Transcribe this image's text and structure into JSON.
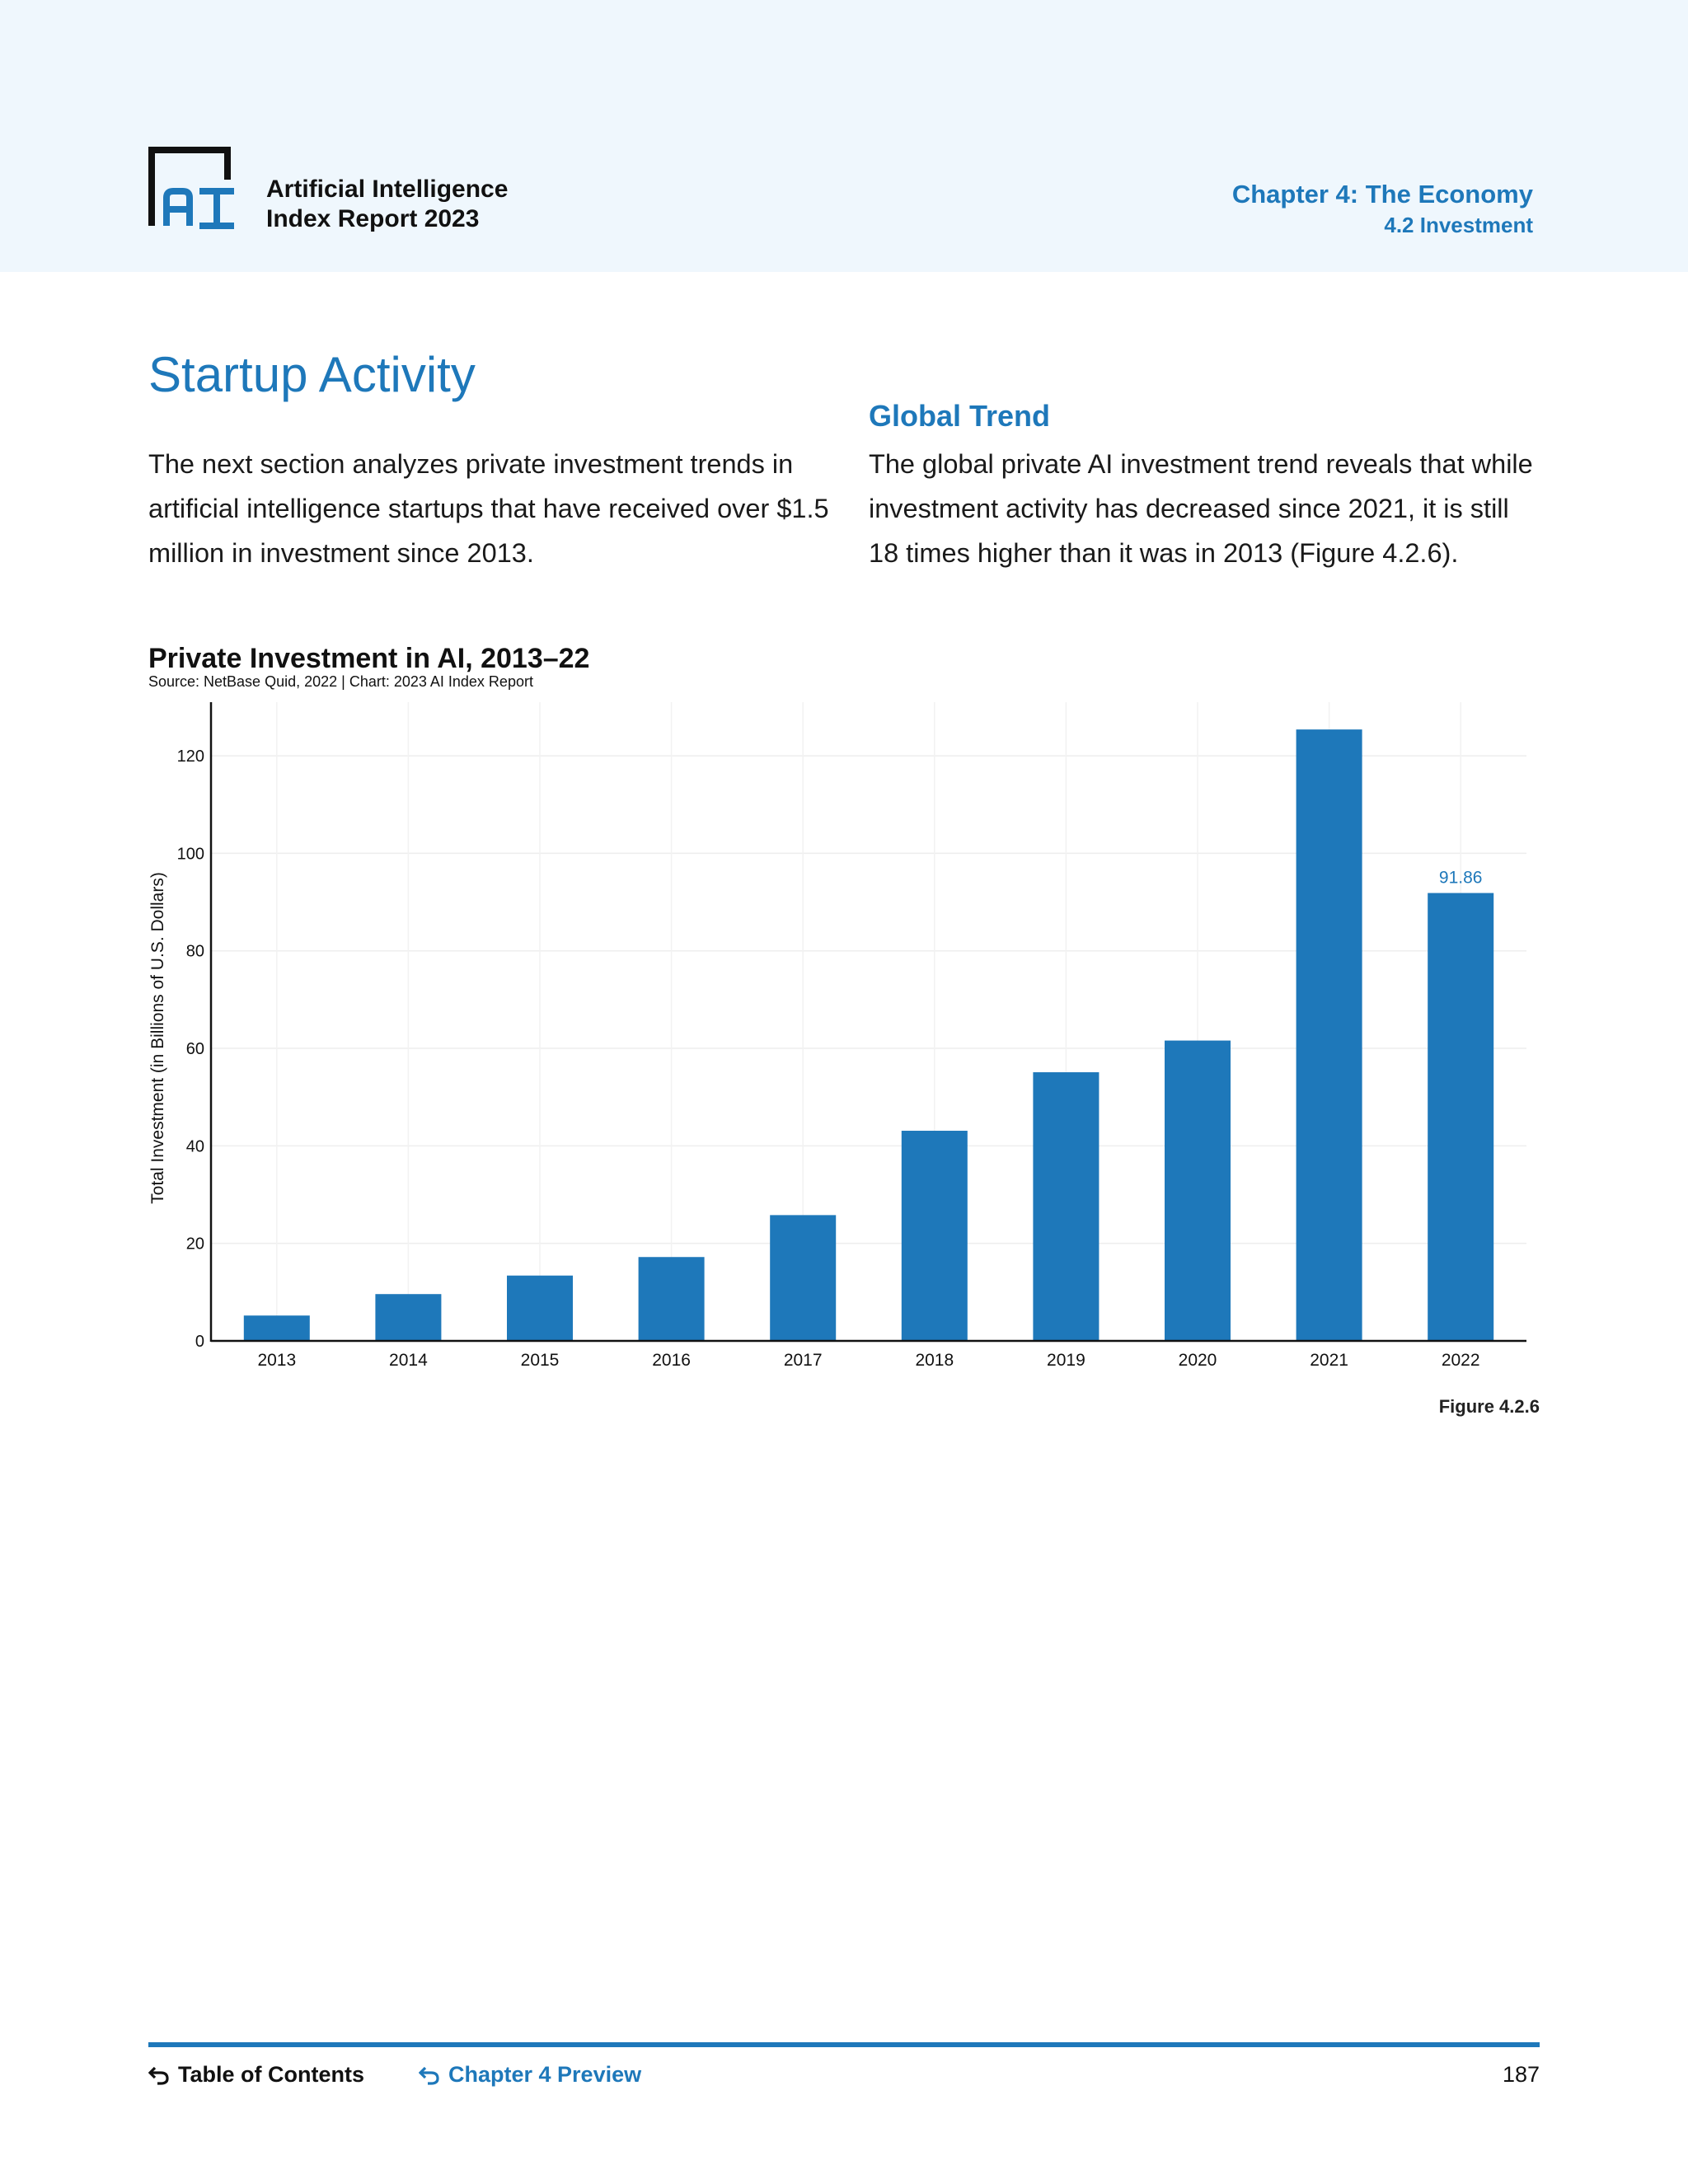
{
  "header": {
    "report_title_line1": "Artificial Intelligence",
    "report_title_line2": "Index Report 2023",
    "chapter_title": "Chapter 4: The Economy",
    "chapter_subtitle": "4.2 Investment",
    "logo_icon": "ai-index-logo-icon"
  },
  "main": {
    "page_heading": "Startup Activity",
    "left_paragraph": "The next section analyzes private investment trends in artificial intelligence startups that have received over $1.5 million in investment since 2013.",
    "section_heading": "Global Trend",
    "right_paragraph": "The global private AI investment trend reveals that while investment activity has decreased since 2021, it is still 18 times higher than it was in 2013 (Figure 4.2.6).",
    "figure_label": "Figure 4.2.6"
  },
  "chart_data": {
    "type": "bar",
    "title": "Private Investment in AI, 2013–22",
    "source": "Source: NetBase Quid, 2022 | Chart: 2023 AI Index Report",
    "xlabel": "",
    "ylabel": "Total Investment (in Billions of U.S. Dollars)",
    "categories": [
      "2013",
      "2014",
      "2015",
      "2016",
      "2017",
      "2018",
      "2019",
      "2020",
      "2021",
      "2022"
    ],
    "values": [
      5.2,
      9.6,
      13.4,
      17.2,
      25.8,
      43.1,
      55.1,
      61.6,
      125.4,
      91.86
    ],
    "data_labels": [
      {
        "index": 9,
        "text": "91.86"
      }
    ],
    "yticks": [
      0,
      20,
      40,
      60,
      80,
      100,
      120
    ],
    "ylim": [
      0,
      131
    ],
    "grid": true,
    "bar_color": "#1e78ba",
    "label_color": "#1e78ba"
  },
  "footer": {
    "toc_label": "Table of Contents",
    "chapter_preview_label": "Chapter 4 Preview",
    "page_number": "187",
    "back_icon": "back-arrow-icon"
  },
  "colors": {
    "accent": "#1e78ba",
    "header_bg": "#eff7fd"
  }
}
